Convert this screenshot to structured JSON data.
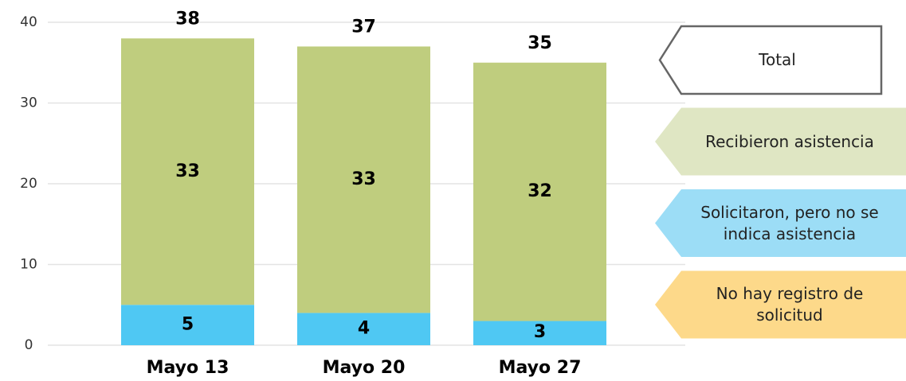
{
  "chart_data": {
    "type": "stacked_bar",
    "categories": [
      "Mayo 13",
      "Mayo 20",
      "Mayo 27"
    ],
    "series": [
      {
        "name": "Recibieron asistencia",
        "color": "#bfcd7e",
        "legend_color": "#dfe6c3",
        "values": [
          33,
          33,
          32
        ]
      },
      {
        "name": "Solicitaron, pero no se indica asistencia",
        "color": "#4fc8f3",
        "legend_color": "#9cddf6",
        "values": [
          5,
          4,
          3
        ]
      },
      {
        "name": "No hay registro de solicitud",
        "color": "#fdd98a",
        "legend_color": "#fdd98a",
        "values": [
          null,
          null,
          null
        ]
      }
    ],
    "totals": {
      "name": "Total",
      "values": [
        38,
        37,
        35
      ]
    },
    "ylim": [
      0,
      40
    ],
    "yticks": [
      0,
      10,
      20,
      30,
      40
    ],
    "grid": true
  }
}
